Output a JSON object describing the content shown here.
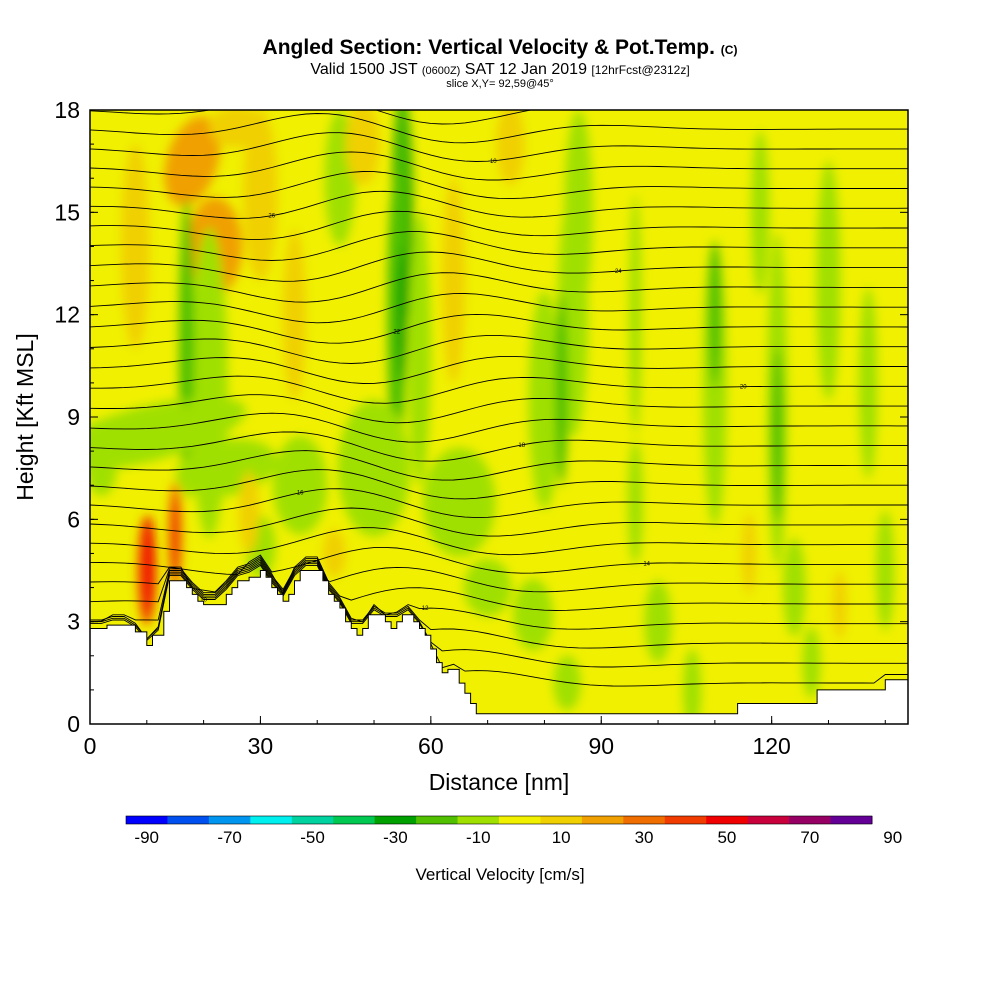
{
  "title": {
    "main": "Angled Section: Vertical Velocity & Pot.Temp.",
    "units_note": "(C)",
    "valid": "Valid 1500 JST",
    "valid_small": "(0600Z)",
    "valid_date": "SAT 12 Jan 2019",
    "fcst": "[12hrFcst@2312z]",
    "slice": "slice X,Y= 92,59@45°"
  },
  "chart_data": {
    "type": "heatmap",
    "title": "Angled Section: Vertical Velocity & Pot.Temp.",
    "xlabel": "Distance [nm]",
    "ylabel": "Height [Kft MSL]",
    "xlim": [
      0,
      144
    ],
    "ylim": [
      0,
      18
    ],
    "x_ticks": [
      0,
      30,
      60,
      90,
      120
    ],
    "y_ticks": [
      0,
      3,
      6,
      9,
      12,
      15,
      18
    ],
    "colorbar": {
      "label": "Vertical Velocity [cm/s]",
      "tick_labels": [
        "-90",
        "-70",
        "-50",
        "-30",
        "-10",
        "10",
        "30",
        "50",
        "70",
        "90"
      ],
      "colors": [
        "#0000ff",
        "#0050f0",
        "#0096f0",
        "#00f0f0",
        "#00d2a0",
        "#00c850",
        "#00a000",
        "#50c000",
        "#a0e000",
        "#f0f000",
        "#f0d000",
        "#f0a000",
        "#f06e00",
        "#f03c00",
        "#f00000",
        "#c8003c",
        "#960064",
        "#640096"
      ]
    },
    "terrain": [
      [
        0,
        2.8
      ],
      [
        3,
        2.8
      ],
      [
        3,
        2.9
      ],
      [
        8,
        2.9
      ],
      [
        8,
        2.7
      ],
      [
        10,
        2.7
      ],
      [
        10,
        2.3
      ],
      [
        11,
        2.3
      ],
      [
        11,
        2.6
      ],
      [
        13,
        2.6
      ],
      [
        13,
        3.3
      ],
      [
        14,
        3.3
      ],
      [
        14,
        4.2
      ],
      [
        17,
        4.2
      ],
      [
        17,
        4.0
      ],
      [
        18,
        4.0
      ],
      [
        18,
        3.8
      ],
      [
        19,
        3.8
      ],
      [
        19,
        3.6
      ],
      [
        20,
        3.6
      ],
      [
        20,
        3.5
      ],
      [
        24,
        3.5
      ],
      [
        24,
        3.8
      ],
      [
        25,
        3.8
      ],
      [
        25,
        4.0
      ],
      [
        26,
        4.0
      ],
      [
        26,
        4.2
      ],
      [
        28,
        4.2
      ],
      [
        28,
        4.3
      ],
      [
        30,
        4.3
      ],
      [
        30,
        4.5
      ],
      [
        31,
        4.5
      ],
      [
        31,
        4.3
      ],
      [
        32,
        4.3
      ],
      [
        32,
        4.0
      ],
      [
        33,
        4.0
      ],
      [
        33,
        3.8
      ],
      [
        34,
        3.8
      ],
      [
        34,
        3.6
      ],
      [
        35,
        3.6
      ],
      [
        35,
        3.8
      ],
      [
        36,
        3.8
      ],
      [
        36,
        4.2
      ],
      [
        37,
        4.2
      ],
      [
        37,
        4.5
      ],
      [
        41,
        4.5
      ],
      [
        41,
        4.2
      ],
      [
        42,
        4.2
      ],
      [
        42,
        3.8
      ],
      [
        43,
        3.8
      ],
      [
        43,
        3.6
      ],
      [
        44,
        3.6
      ],
      [
        44,
        3.4
      ],
      [
        45,
        3.4
      ],
      [
        45,
        3.0
      ],
      [
        46,
        3.0
      ],
      [
        46,
        2.8
      ],
      [
        47,
        2.8
      ],
      [
        47,
        2.6
      ],
      [
        48,
        2.6
      ],
      [
        48,
        2.8
      ],
      [
        49,
        2.8
      ],
      [
        49,
        3.2
      ],
      [
        52,
        3.2
      ],
      [
        52,
        3.0
      ],
      [
        53,
        3.0
      ],
      [
        53,
        2.8
      ],
      [
        54,
        2.8
      ],
      [
        54,
        3.0
      ],
      [
        55,
        3.0
      ],
      [
        55,
        3.2
      ],
      [
        57,
        3.2
      ],
      [
        57,
        3.0
      ],
      [
        58,
        3.0
      ],
      [
        58,
        2.8
      ],
      [
        59,
        2.8
      ],
      [
        59,
        2.6
      ],
      [
        60,
        2.6
      ],
      [
        60,
        2.2
      ],
      [
        61,
        2.2
      ],
      [
        61,
        1.8
      ],
      [
        62,
        1.8
      ],
      [
        62,
        1.5
      ],
      [
        63,
        1.5
      ],
      [
        63,
        1.6
      ],
      [
        65,
        1.6
      ],
      [
        65,
        1.2
      ],
      [
        66,
        1.2
      ],
      [
        66,
        0.9
      ],
      [
        67,
        0.9
      ],
      [
        67,
        0.6
      ],
      [
        68,
        0.6
      ],
      [
        68,
        0.3
      ],
      [
        114,
        0.3
      ],
      [
        114,
        0.6
      ],
      [
        128,
        0.6
      ],
      [
        128,
        1.0
      ],
      [
        140,
        1.0
      ],
      [
        140,
        1.3
      ],
      [
        144,
        1.3
      ]
    ],
    "theta_levels_c": [
      -4,
      -3,
      -2,
      -1,
      0,
      1,
      2,
      3,
      4,
      5,
      6,
      7,
      8,
      9,
      10,
      11,
      12,
      13,
      14,
      15,
      16,
      17,
      18,
      19,
      20,
      21,
      22,
      23,
      24,
      25,
      26
    ],
    "theta_label_values": [
      "10",
      "12",
      "14",
      "16",
      "18",
      "20",
      "22",
      "24",
      "26"
    ]
  }
}
